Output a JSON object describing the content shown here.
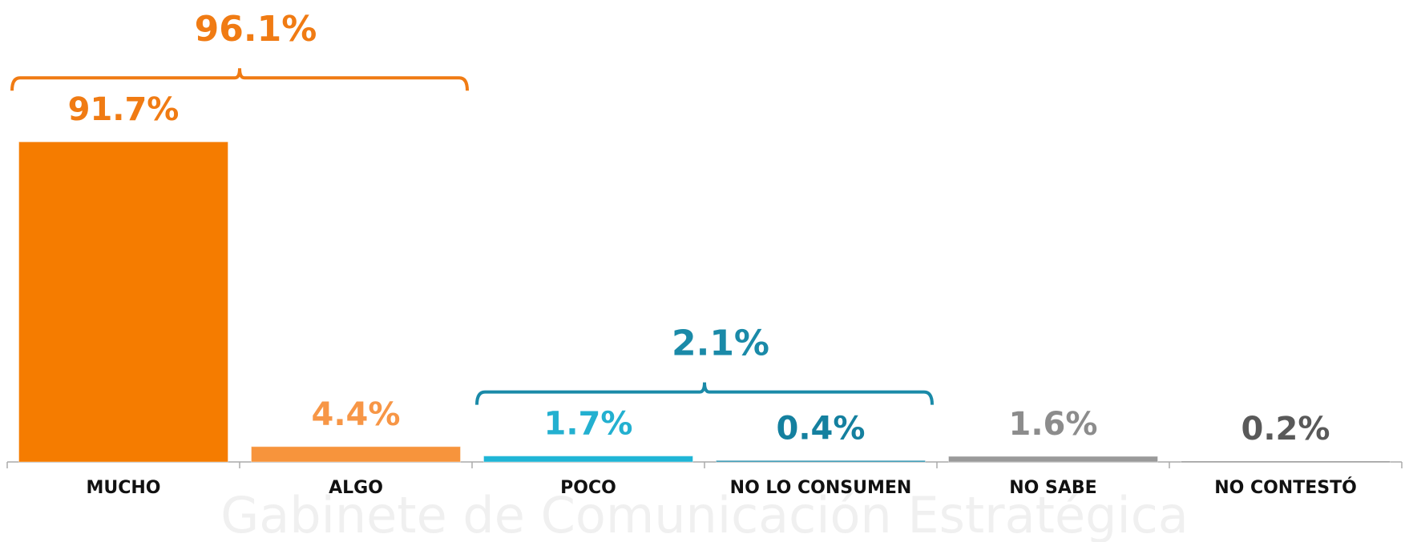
{
  "chart_data": {
    "type": "bar",
    "categories": [
      "MUCHO",
      "ALGO",
      "POCO",
      "NO LO CONSUMEN",
      "NO SABE",
      "NO CONTESTÓ"
    ],
    "values": [
      91.7,
      4.4,
      1.7,
      0.4,
      1.6,
      0.2
    ],
    "value_labels": [
      "91.7%",
      "4.4%",
      "1.7%",
      "0.4%",
      "1.6%",
      "0.2%"
    ],
    "colors": [
      "#f57c00",
      "#f7943c",
      "#1fb5d6",
      "#1a8aa8",
      "#9a9a9a",
      "#7a7a7a"
    ],
    "label_colors": [
      "#f07b13",
      "#f79646",
      "#23b0d0",
      "#14809f",
      "#8c8c8c",
      "#595959"
    ],
    "ylim": [
      0,
      100
    ],
    "groups": [
      {
        "categories": [
          "MUCHO",
          "ALGO"
        ],
        "value": 96.1,
        "label": "96.1%",
        "color": "#f07b13"
      },
      {
        "categories": [
          "POCO",
          "NO LO CONSUMEN"
        ],
        "value": 2.1,
        "label": "2.1%",
        "color": "#1a8aa8"
      }
    ],
    "watermark": "Gabinete de Comunicación Estratégica"
  }
}
